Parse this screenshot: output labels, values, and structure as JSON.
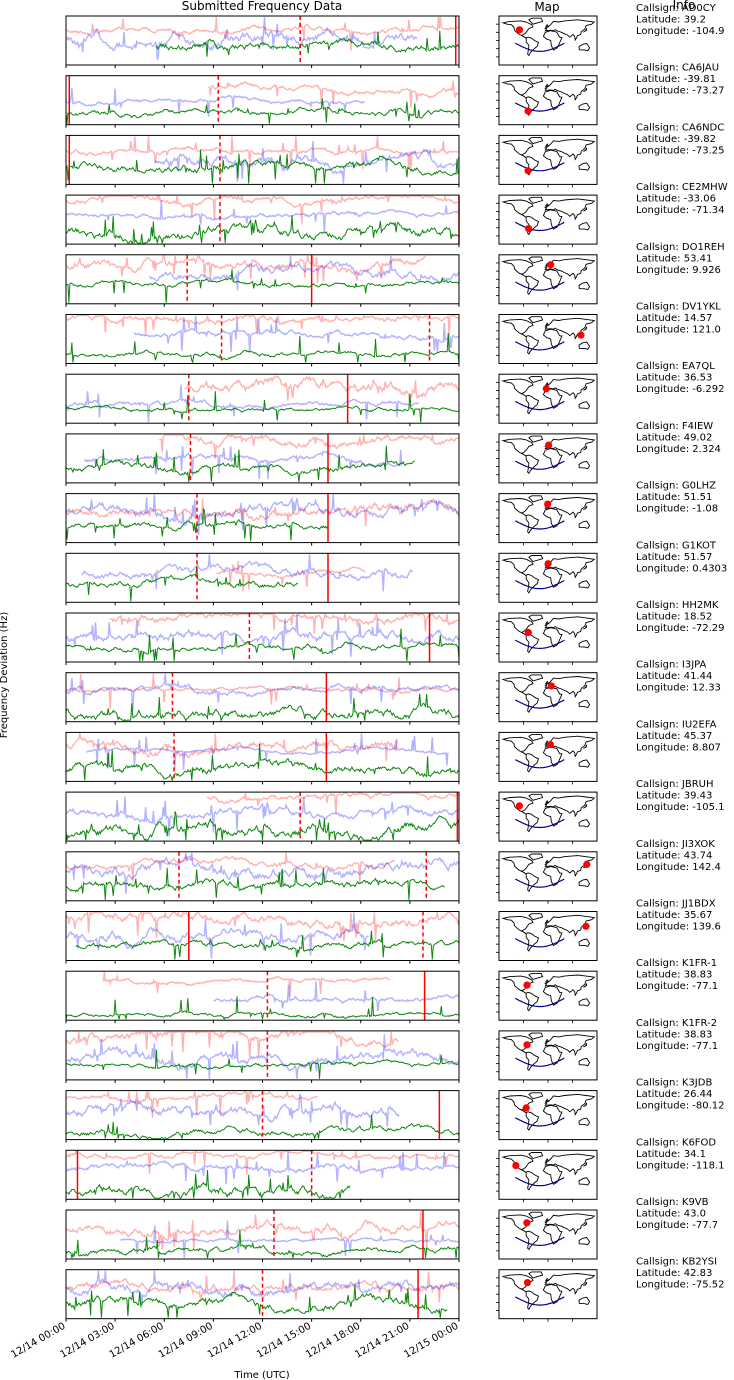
{
  "chart_data": {
    "type": "line",
    "titles": {
      "data": "Submitted Frequency Data",
      "map": "Map",
      "info": "Info"
    },
    "xlabel": "Time (UTC)",
    "ylabel": "Frequency Deviation (Hz)",
    "x_ticks": [
      "12/14 00:00",
      "12/14 03:00",
      "12/14 06:00",
      "12/14 09:00",
      "12/14 12:00",
      "12/14 15:00",
      "12/14 18:00",
      "12/14 21:00",
      "12/15 00:00"
    ],
    "xlim_hours": [
      0,
      24
    ],
    "info_labels": {
      "callsign": "Callsign: ",
      "latitude": "Latitude: ",
      "longitude": "Longitude: "
    },
    "series_colors": [
      "#ff0000",
      "#0000ff",
      "#008000"
    ],
    "stations": [
      {
        "callsign": "AD0CY",
        "latitude": "39.2",
        "longitude": "-104.9",
        "lat": 39.2,
        "lon": -104.9
      },
      {
        "callsign": "CA6JAU",
        "latitude": "-39.81",
        "longitude": "-73.27",
        "lat": -39.81,
        "lon": -73.27
      },
      {
        "callsign": "CA6NDC",
        "latitude": "-39.82",
        "longitude": "-73.25",
        "lat": -39.82,
        "lon": -73.25
      },
      {
        "callsign": "CE2MHW",
        "latitude": "-33.06",
        "longitude": "-71.34",
        "lat": -33.06,
        "lon": -71.34
      },
      {
        "callsign": "DO1REH",
        "latitude": "53.41",
        "longitude": "9.926",
        "lat": 53.41,
        "lon": 9.926
      },
      {
        "callsign": "DV1YKL",
        "latitude": "14.57",
        "longitude": "121.0",
        "lat": 14.57,
        "lon": 121.0
      },
      {
        "callsign": "EA7QL",
        "latitude": "36.53",
        "longitude": "-6.292",
        "lat": 36.53,
        "lon": -6.292
      },
      {
        "callsign": "F4IEW",
        "latitude": "49.02",
        "longitude": "2.324",
        "lat": 49.02,
        "lon": 2.324
      },
      {
        "callsign": "G0LHZ",
        "latitude": "51.51",
        "longitude": "-1.08",
        "lat": 51.51,
        "lon": -1.08
      },
      {
        "callsign": "G1KOT",
        "latitude": "51.57",
        "longitude": "0.4303",
        "lat": 51.57,
        "lon": 0.4303
      },
      {
        "callsign": "HH2MK",
        "latitude": "18.52",
        "longitude": "-72.29",
        "lat": 18.52,
        "lon": -72.29
      },
      {
        "callsign": "I3JPA",
        "latitude": "41.44",
        "longitude": "12.33",
        "lat": 41.44,
        "lon": 12.33
      },
      {
        "callsign": "IU2EFA",
        "latitude": "45.37",
        "longitude": "8.807",
        "lat": 45.37,
        "lon": 8.807
      },
      {
        "callsign": "JBRUH",
        "latitude": "39.43",
        "longitude": "-105.1",
        "lat": 39.43,
        "lon": -105.1
      },
      {
        "callsign": "JI3XOK",
        "latitude": "43.74",
        "longitude": "142.4",
        "lat": 43.74,
        "lon": 142.4
      },
      {
        "callsign": "JJ1BDX",
        "latitude": "35.67",
        "longitude": "139.6",
        "lat": 35.67,
        "lon": 139.6
      },
      {
        "callsign": "K1FR-1",
        "latitude": "38.83",
        "longitude": "-77.1",
        "lat": 38.83,
        "lon": -77.1
      },
      {
        "callsign": "K1FR-2",
        "latitude": "38.83",
        "longitude": "-77.1",
        "lat": 38.83,
        "lon": -77.1
      },
      {
        "callsign": "K3JDB",
        "latitude": "26.44",
        "longitude": "-80.12",
        "lat": 26.44,
        "lon": -80.12
      },
      {
        "callsign": "K6FOD",
        "latitude": "34.1",
        "longitude": "-118.1",
        "lat": 34.1,
        "lon": -118.1
      },
      {
        "callsign": "K9VB",
        "latitude": "43.0",
        "longitude": "-77.7",
        "lat": 43.0,
        "lon": -77.7
      },
      {
        "callsign": "KB2YSI",
        "latitude": "42.83",
        "longitude": "-75.52",
        "lat": 42.83,
        "lon": -75.52
      }
    ],
    "vlines_hours": [
      {
        "solid": [
          23.8
        ],
        "dashed": [
          14.3
        ]
      },
      {
        "solid": [
          0.2
        ],
        "dashed": [
          9.3
        ]
      },
      {
        "solid": [
          0.2
        ],
        "dashed": [
          9.4
        ]
      },
      {
        "solid": [
          24.0
        ],
        "dashed": [
          9.4
        ]
      },
      {
        "solid": [
          15.0
        ],
        "dashed": [
          7.4
        ]
      },
      {
        "solid": [],
        "dashed": [
          9.5,
          22.2
        ]
      },
      {
        "solid": [
          17.2
        ],
        "dashed": [
          7.5
        ]
      },
      {
        "solid": [
          16.0
        ],
        "dashed": [
          7.6
        ]
      },
      {
        "solid": [
          16.0
        ],
        "dashed": [
          8.0
        ]
      },
      {
        "solid": [
          16.0
        ],
        "dashed": [
          8.0
        ]
      },
      {
        "solid": [
          22.2
        ],
        "dashed": [
          11.2
        ]
      },
      {
        "solid": [
          15.9
        ],
        "dashed": [
          6.5
        ]
      },
      {
        "solid": [
          15.9
        ],
        "dashed": [
          6.6
        ]
      },
      {
        "solid": [
          23.9
        ],
        "dashed": [
          14.3
        ]
      },
      {
        "solid": [],
        "dashed": [
          6.9,
          22.0
        ]
      },
      {
        "solid": [
          7.5
        ],
        "dashed": [
          21.8
        ]
      },
      {
        "solid": [
          21.9
        ],
        "dashed": [
          12.3
        ]
      },
      {
        "solid": [],
        "dashed": [
          12.3
        ]
      },
      {
        "solid": [
          22.8
        ],
        "dashed": [
          12.0
        ]
      },
      {
        "solid": [
          0.7
        ],
        "dashed": [
          15.0
        ]
      },
      {
        "solid": [
          21.8
        ],
        "dashed": [
          12.7
        ]
      },
      {
        "solid": [
          21.5
        ],
        "dashed": [
          12.0
        ]
      }
    ]
  }
}
